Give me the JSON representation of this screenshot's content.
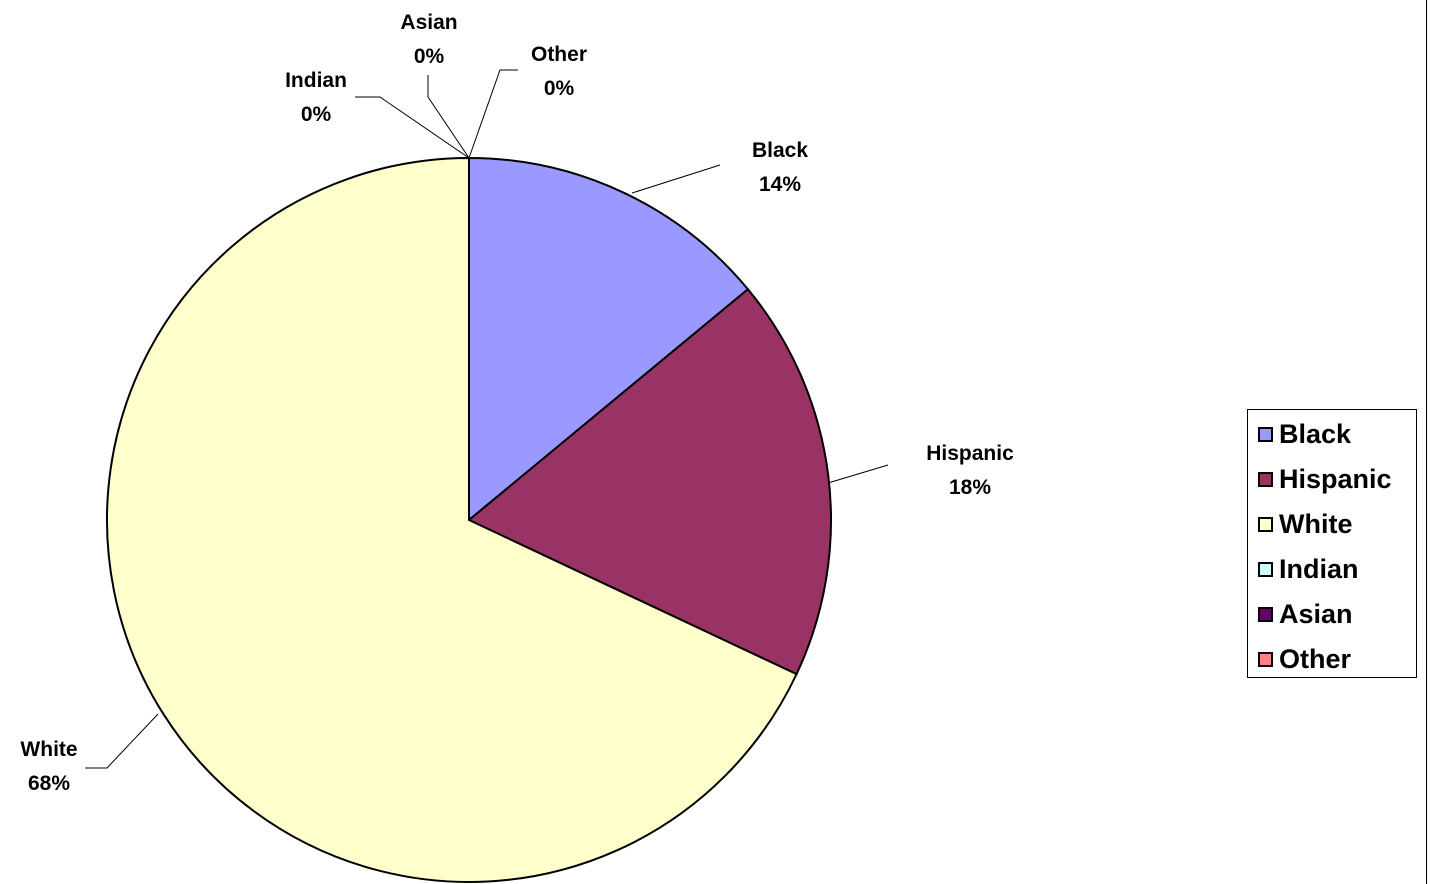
{
  "chart_data": {
    "type": "pie",
    "title": "",
    "start_angle_deg": 0,
    "direction": "clockwise",
    "slices": [
      {
        "label": "Black",
        "value": 14,
        "pct_label": "14%",
        "color": "#9999FF"
      },
      {
        "label": "Hispanic",
        "value": 18,
        "pct_label": "18%",
        "color": "#993366"
      },
      {
        "label": "White",
        "value": 68,
        "pct_label": "68%",
        "color": "#FFFFCC"
      },
      {
        "label": "Indian",
        "value": 0,
        "pct_label": "0%",
        "color": "#CCFFFF"
      },
      {
        "label": "Asian",
        "value": 0,
        "pct_label": "0%",
        "color": "#660066"
      },
      {
        "label": "Other",
        "value": 0,
        "pct_label": "0%",
        "color": "#FF8080"
      }
    ],
    "legend": {
      "position": "right",
      "entries": [
        "Black",
        "Hispanic",
        "White",
        "Indian",
        "Asian",
        "Other"
      ]
    }
  }
}
